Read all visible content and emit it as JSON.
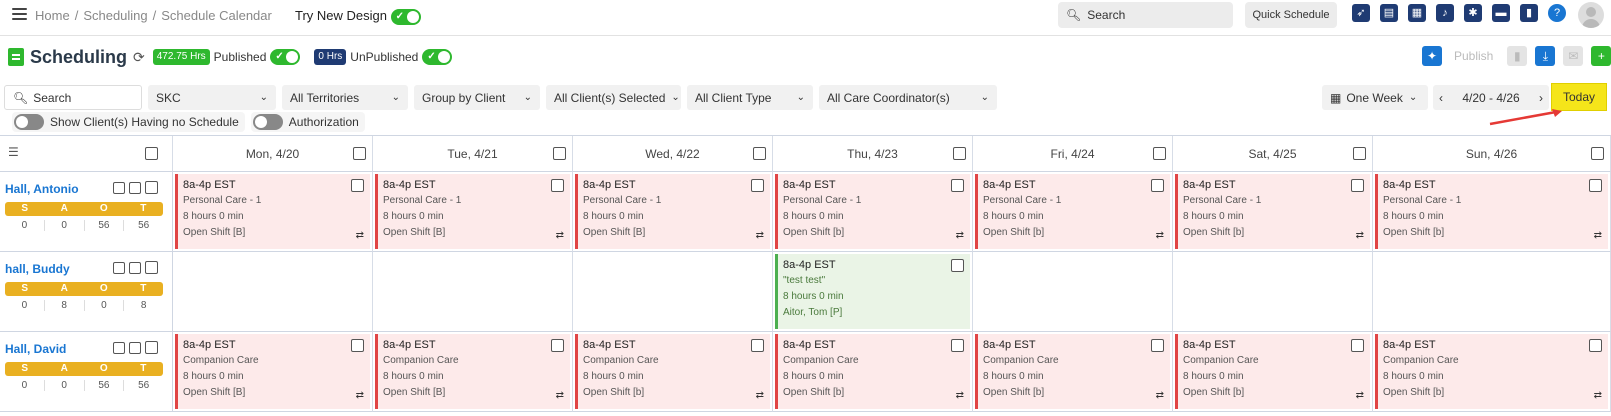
{
  "breadcrumb": [
    "Home",
    "Scheduling",
    "Schedule Calendar"
  ],
  "try_new_design": "Try New Design",
  "top": {
    "search_label": "Search",
    "quick_schedule": "Quick Schedule",
    "icons": [
      "rocket-icon",
      "document-icon",
      "calendar-icon",
      "bell-icon",
      "gear-icon",
      "chat-icon",
      "bookmark-icon",
      "help-icon"
    ]
  },
  "header": {
    "title": "Scheduling",
    "published_hrs": "472.75 Hrs",
    "published_label": "Published",
    "unpublished_hrs": "0 Hrs",
    "unpublished_label": "UnPublished",
    "publish_label": "Publish"
  },
  "filters": {
    "search": "Search",
    "agency": "SKC",
    "territories": "All Territories",
    "group_by": "Group by Client",
    "clients": "All Client(s) Selected",
    "client_type": "All Client Type",
    "coordinators": "All Care Coordinator(s)",
    "view": "One Week",
    "date_range": "4/20 - 4/26",
    "today": "Today",
    "show_no_schedule": "Show Client(s) Having no Schedule",
    "authorization": "Authorization"
  },
  "days": [
    "Mon, 4/20",
    "Tue, 4/21",
    "Wed, 4/22",
    "Thu, 4/23",
    "Fri, 4/24",
    "Sat, 4/25",
    "Sun, 4/26"
  ],
  "stat_labels": [
    "S",
    "A",
    "O",
    "T"
  ],
  "clients": [
    {
      "name": "Hall, Antonio",
      "stats": [
        "0",
        "0",
        "56",
        "56"
      ],
      "shifts": [
        {
          "time": "8a-4p EST",
          "service": "Personal Care - 1",
          "hours": "8 hours 0 min",
          "assignee": "Open Shift [B]"
        },
        {
          "time": "8a-4p EST",
          "service": "Personal Care - 1",
          "hours": "8 hours 0 min",
          "assignee": "Open Shift [B]"
        },
        {
          "time": "8a-4p EST",
          "service": "Personal Care - 1",
          "hours": "8 hours 0 min",
          "assignee": "Open Shift [B]"
        },
        {
          "time": "8a-4p EST",
          "service": "Personal Care - 1",
          "hours": "8 hours 0 min",
          "assignee": "Open Shift [b]"
        },
        {
          "time": "8a-4p EST",
          "service": "Personal Care - 1",
          "hours": "8 hours 0 min",
          "assignee": "Open Shift [b]"
        },
        {
          "time": "8a-4p EST",
          "service": "Personal Care - 1",
          "hours": "8 hours 0 min",
          "assignee": "Open Shift [b]"
        },
        {
          "time": "8a-4p EST",
          "service": "Personal Care - 1",
          "hours": "8 hours 0 min",
          "assignee": "Open Shift [b]"
        }
      ]
    },
    {
      "name": "hall, Buddy",
      "stats": [
        "0",
        "8",
        "0",
        "8"
      ],
      "shifts": [
        null,
        null,
        null,
        {
          "time": "8a-4p EST",
          "service": "\"test test\"",
          "hours": "8 hours 0 min",
          "assignee": "Aitor, Tom [P]",
          "assigned": true
        },
        null,
        null,
        null
      ]
    },
    {
      "name": "Hall, David",
      "stats": [
        "0",
        "0",
        "56",
        "56"
      ],
      "shifts": [
        {
          "time": "8a-4p EST",
          "service": "Companion Care",
          "hours": "8 hours 0 min",
          "assignee": "Open Shift [B]"
        },
        {
          "time": "8a-4p EST",
          "service": "Companion Care",
          "hours": "8 hours 0 min",
          "assignee": "Open Shift [B]"
        },
        {
          "time": "8a-4p EST",
          "service": "Companion Care",
          "hours": "8 hours 0 min",
          "assignee": "Open Shift [b]"
        },
        {
          "time": "8a-4p EST",
          "service": "Companion Care",
          "hours": "8 hours 0 min",
          "assignee": "Open Shift [b]"
        },
        {
          "time": "8a-4p EST",
          "service": "Companion Care",
          "hours": "8 hours 0 min",
          "assignee": "Open Shift [b]"
        },
        {
          "time": "8a-4p EST",
          "service": "Companion Care",
          "hours": "8 hours 0 min",
          "assignee": "Open Shift [b]"
        },
        {
          "time": "8a-4p EST",
          "service": "Companion Care",
          "hours": "8 hours 0 min",
          "assignee": "Open Shift [b]"
        }
      ]
    }
  ],
  "colors": {
    "accent_green": "#2eb82e",
    "open_shift_bg": "#fdeaea",
    "open_shift_border": "#e04545",
    "assigned_bg": "#eaf4e6",
    "stat_header": "#e9b021",
    "today_button": "#f5e51a",
    "link_blue": "#1976d2"
  }
}
